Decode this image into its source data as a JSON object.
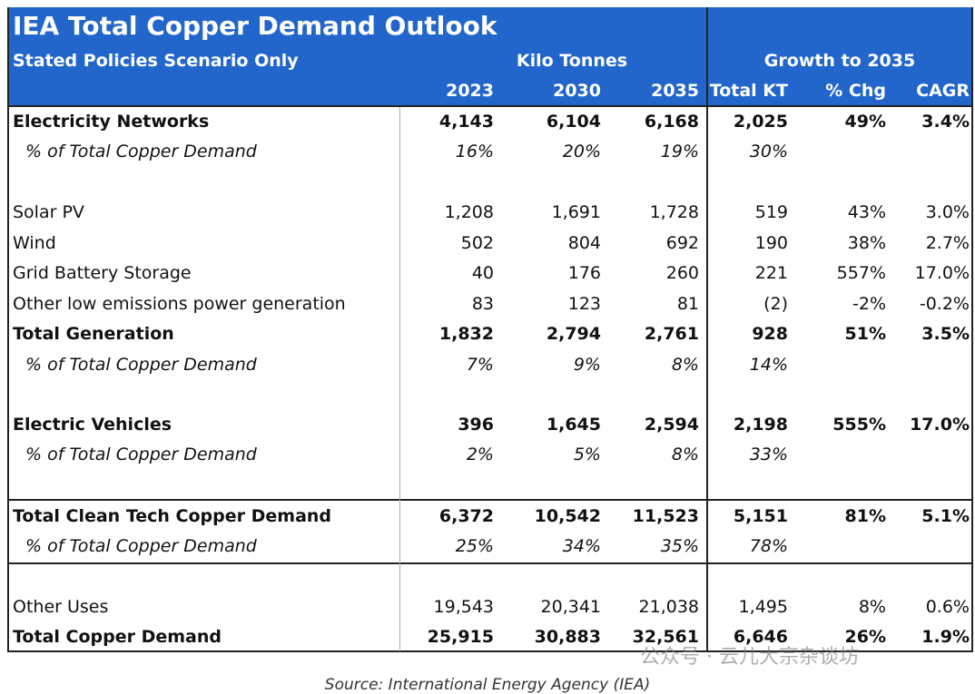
{
  "header": {
    "title": "IEA Total Copper Demand Outlook",
    "subtitle": "Stated Policies Scenario Only",
    "groups": [
      "Kilo Tonnes",
      "Growth to 2035"
    ],
    "columns": [
      "2023",
      "2030",
      "2035",
      "Total KT",
      "% Chg",
      "CAGR"
    ]
  },
  "table": {
    "rows": [
      {
        "label": "Electricity Networks",
        "cells": [
          "4,143",
          "6,104",
          "6,168",
          "2,025",
          "49%",
          "3.4%"
        ]
      },
      {
        "label": "% of Total Copper Demand",
        "cells": [
          "16%",
          "20%",
          "19%",
          "30%"
        ]
      },
      {
        "label": "Solar PV",
        "cells": [
          "1,208",
          "1,691",
          "1,728",
          "519",
          "43%",
          "3.0%"
        ]
      },
      {
        "label": "Wind",
        "cells": [
          "502",
          "804",
          "692",
          "190",
          "38%",
          "2.7%"
        ]
      },
      {
        "label": "Grid Battery Storage",
        "cells": [
          "40",
          "176",
          "260",
          "221",
          "557%",
          "17.0%"
        ]
      },
      {
        "label": "Other low emissions power generation",
        "cells": [
          "83",
          "123",
          "81",
          "(2)",
          "-2%",
          "-0.2%"
        ]
      },
      {
        "label": "Total Generation",
        "cells": [
          "1,832",
          "2,794",
          "2,761",
          "928",
          "51%",
          "3.5%"
        ]
      },
      {
        "label": "% of Total Copper Demand",
        "cells": [
          "7%",
          "9%",
          "8%",
          "14%"
        ]
      },
      {
        "label": "Electric Vehicles",
        "cells": [
          "396",
          "1,645",
          "2,594",
          "2,198",
          "555%",
          "17.0%"
        ]
      },
      {
        "label": "% of Total Copper Demand",
        "cells": [
          "2%",
          "5%",
          "8%",
          "33%"
        ]
      },
      {
        "label": "Total Clean Tech Copper Demand",
        "cells": [
          "6,372",
          "10,542",
          "11,523",
          "5,151",
          "81%",
          "5.1%"
        ]
      },
      {
        "label": "% of Total Copper Demand",
        "cells": [
          "25%",
          "34%",
          "35%",
          "78%"
        ]
      },
      {
        "label": "Other Uses",
        "cells": [
          "19,543",
          "20,341",
          "21,038",
          "1,495",
          "8%",
          "0.6%"
        ]
      },
      {
        "label": "Total Copper Demand",
        "cells": [
          "25,915",
          "30,883",
          "32,561",
          "6,646",
          "26%",
          "1.9%"
        ]
      }
    ]
  },
  "watermark": "公众号 · 云儿大宗杂谈坊",
  "source": "Source: International Energy Agency (IEA)"
}
